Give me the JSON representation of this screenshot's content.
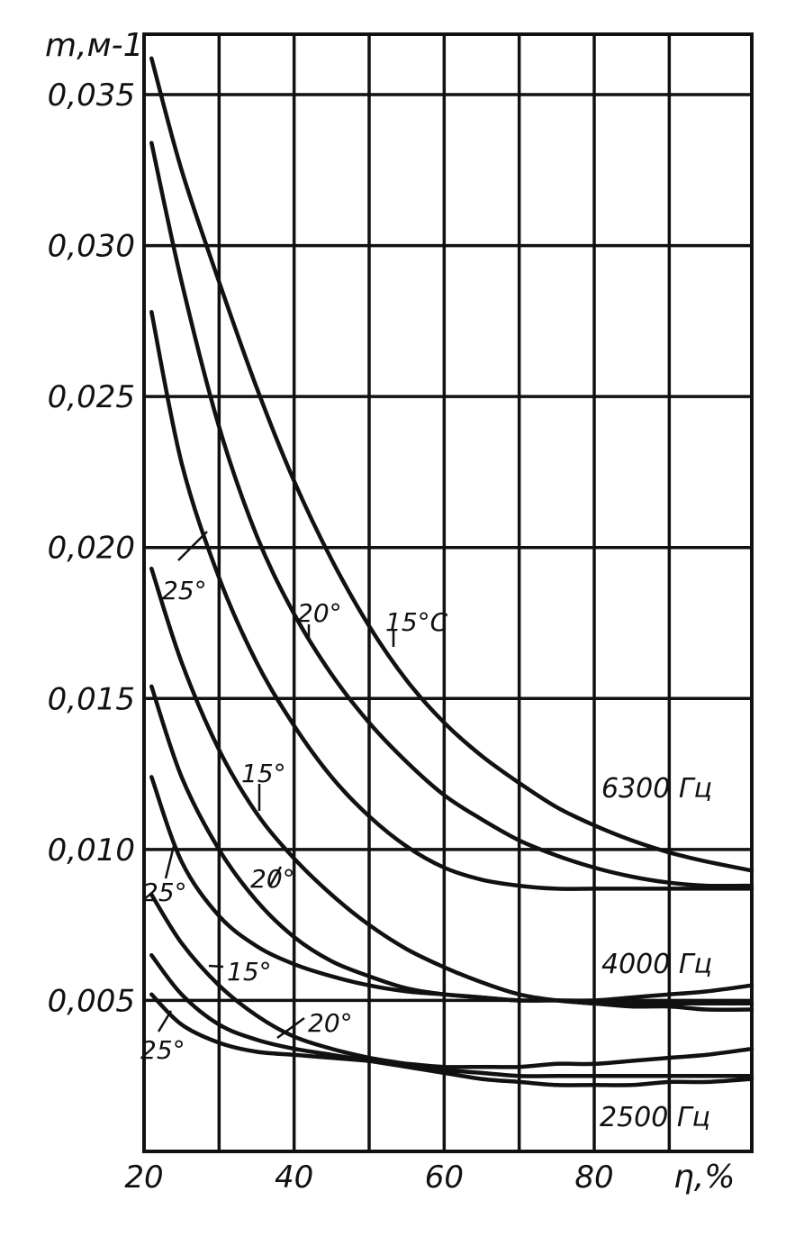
{
  "chart_data": {
    "type": "line",
    "title": "",
    "xlabel": "η,%",
    "ylabel": "m,м-1",
    "xlim": [
      20,
      101
    ],
    "ylim": [
      0,
      0.037
    ],
    "x_ticks": [
      20,
      40,
      60,
      80
    ],
    "x_tick_labels": [
      "20",
      "40",
      "60",
      "80"
    ],
    "y_ticks": [
      0.005,
      0.01,
      0.015,
      0.02,
      0.025,
      0.03,
      0.035
    ],
    "y_tick_labels": [
      "0,005",
      "0,010",
      "0,015",
      "0,020",
      "0,025",
      "0,030",
      "0,035"
    ],
    "x_grid": [
      20,
      30,
      40,
      50,
      60,
      70,
      80,
      90,
      101
    ],
    "y_grid": [
      0,
      0.005,
      0.01,
      0.015,
      0.02,
      0.025,
      0.03,
      0.035
    ],
    "grid": true,
    "groups": [
      {
        "frequency_label": "6300 Гц",
        "series": [
          {
            "name": "15°C",
            "x": [
              21,
              25,
              30,
              35,
              40,
              45,
              50,
              55,
              60,
              65,
              70,
              75,
              80,
              85,
              90,
              95,
              101
            ],
            "y": [
              0.0362,
              0.0325,
              0.0288,
              0.0253,
              0.0222,
              0.0196,
              0.0174,
              0.0156,
              0.0142,
              0.0131,
              0.0122,
              0.0114,
              0.0108,
              0.0103,
              0.0099,
              0.0096,
              0.0093
            ]
          },
          {
            "name": "20°",
            "x": [
              21,
              25,
              30,
              35,
              40,
              45,
              50,
              55,
              60,
              65,
              70,
              75,
              80,
              85,
              90,
              95,
              101
            ],
            "y": [
              0.0334,
              0.0288,
              0.024,
              0.0204,
              0.0178,
              0.0158,
              0.0142,
              0.0129,
              0.0118,
              0.011,
              0.0103,
              0.0098,
              0.0094,
              0.0091,
              0.0089,
              0.0088,
              0.0088
            ]
          },
          {
            "name": "25°",
            "x": [
              21,
              25,
              30,
              35,
              40,
              45,
              50,
              55,
              60,
              65,
              70,
              75,
              80,
              85,
              90,
              95,
              101
            ],
            "y": [
              0.0278,
              0.0228,
              0.019,
              0.0162,
              0.0141,
              0.0124,
              0.0111,
              0.0101,
              0.0094,
              0.009,
              0.0088,
              0.0087,
              0.0087,
              0.0087,
              0.0087,
              0.0087,
              0.0087
            ]
          }
        ]
      },
      {
        "frequency_label": "4000 Гц",
        "series": [
          {
            "name": "15°",
            "x": [
              21,
              25,
              30,
              35,
              40,
              45,
              50,
              55,
              60,
              65,
              70,
              75,
              80,
              85,
              90,
              95,
              101
            ],
            "y": [
              0.0193,
              0.0162,
              0.0133,
              0.0112,
              0.0097,
              0.0085,
              0.0075,
              0.0067,
              0.0061,
              0.0056,
              0.0052,
              0.005,
              0.0049,
              0.0048,
              0.0048,
              0.0047,
              0.0047
            ]
          },
          {
            "name": "20°",
            "x": [
              21,
              25,
              30,
              35,
              40,
              45,
              50,
              55,
              60,
              65,
              70,
              75,
              80,
              85,
              90,
              95,
              101
            ],
            "y": [
              0.0154,
              0.0124,
              0.01,
              0.0083,
              0.0071,
              0.0063,
              0.0058,
              0.0054,
              0.0052,
              0.0051,
              0.005,
              0.005,
              0.0049,
              0.0049,
              0.0049,
              0.0049,
              0.0049
            ]
          },
          {
            "name": "25°",
            "x": [
              21,
              25,
              30,
              35,
              40,
              45,
              50,
              55,
              60,
              65,
              70,
              75,
              80,
              85,
              90,
              95,
              101
            ],
            "y": [
              0.0124,
              0.0096,
              0.0078,
              0.0068,
              0.0062,
              0.0058,
              0.0055,
              0.0053,
              0.0052,
              0.0051,
              0.005,
              0.005,
              0.005,
              0.0051,
              0.0052,
              0.0053,
              0.0055
            ]
          }
        ]
      },
      {
        "frequency_label": "2500 Гц",
        "series": [
          {
            "name": "15°",
            "x": [
              21,
              25,
              30,
              35,
              40,
              45,
              50,
              55,
              60,
              65,
              70,
              75,
              80,
              85,
              90,
              95,
              101
            ],
            "y": [
              0.0085,
              0.0069,
              0.0055,
              0.0045,
              0.0038,
              0.0034,
              0.0031,
              0.0029,
              0.0027,
              0.0026,
              0.0025,
              0.0025,
              0.0025,
              0.0025,
              0.0025,
              0.0025,
              0.0025
            ]
          },
          {
            "name": "20°",
            "x": [
              21,
              25,
              30,
              35,
              40,
              45,
              50,
              55,
              60,
              65,
              70,
              75,
              80,
              85,
              90,
              95,
              101
            ],
            "y": [
              0.0065,
              0.0052,
              0.0042,
              0.0037,
              0.0034,
              0.0032,
              0.003,
              0.0028,
              0.0026,
              0.0024,
              0.0023,
              0.0022,
              0.0022,
              0.0022,
              0.0023,
              0.0023,
              0.0024
            ]
          },
          {
            "name": "25°",
            "x": [
              21,
              25,
              30,
              35,
              40,
              45,
              50,
              55,
              60,
              65,
              70,
              75,
              80,
              85,
              90,
              95,
              101
            ],
            "y": [
              0.0052,
              0.0042,
              0.0036,
              0.0033,
              0.0032,
              0.0031,
              0.003,
              0.0029,
              0.0028,
              0.0028,
              0.0028,
              0.0029,
              0.0029,
              0.003,
              0.0031,
              0.0032,
              0.0034
            ]
          }
        ]
      }
    ]
  }
}
